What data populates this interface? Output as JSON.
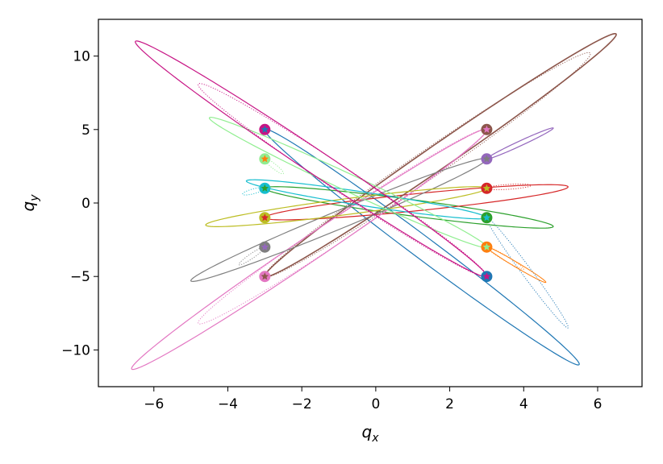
{
  "chart_data": {
    "type": "line",
    "title": "",
    "xlabel": "q",
    "xlabel_sub": "x",
    "ylabel": "q",
    "ylabel_sub": "y",
    "xlim": [
      -7.5,
      7.2
    ],
    "ylim": [
      -12.5,
      12.5
    ],
    "xticks": [
      -6,
      -4,
      -2,
      0,
      2,
      4,
      6
    ],
    "yticks": [
      -10,
      -5,
      0,
      5,
      10
    ],
    "xtick_labels": [
      "−6",
      "−4",
      "−2",
      "0",
      "2",
      "4",
      "6"
    ],
    "ytick_labels": [
      "−10",
      "−5",
      "0",
      "5",
      "10"
    ],
    "grid": false,
    "legend": "none",
    "series": [
      {
        "color": "#1f77b4",
        "start": [
          -3,
          5
        ],
        "orbit_end": [
          5.5,
          -11.0
        ],
        "width": 1.2
      },
      {
        "color": "#1f77b4",
        "start": [
          3,
          -1
        ],
        "orbit_end": [
          5.2,
          -8.5
        ],
        "dotted": true
      },
      {
        "color": "#ff7f0e",
        "start": [
          3,
          -3
        ],
        "orbit_end": [
          4.6,
          -5.4
        ],
        "width": 1.0
      },
      {
        "color": "#ff7f0e",
        "start": [
          3,
          -3
        ],
        "orbit_end": [
          4.0,
          -4.5
        ],
        "dotted": true
      },
      {
        "color": "#2ca02c",
        "start": [
          -3,
          1
        ],
        "orbit_end": [
          4.8,
          -1.6
        ],
        "width": 1.2
      },
      {
        "color": "#d62728",
        "start": [
          -3,
          -1
        ],
        "orbit_end": [
          5.2,
          1.1
        ],
        "width": 1.2
      },
      {
        "color": "#d62728",
        "start": [
          3,
          1
        ],
        "orbit_end": [
          4.2,
          1.2
        ],
        "dotted": true
      },
      {
        "color": "#9467bd",
        "start": [
          3,
          3
        ],
        "orbit_end": [
          4.8,
          5.1
        ],
        "width": 1.2
      },
      {
        "color": "#8c564b",
        "start": [
          -3,
          -5
        ],
        "orbit_end": [
          6.5,
          11.5
        ],
        "width": 1.6
      },
      {
        "color": "#8c564b",
        "start": [
          -3,
          -5
        ],
        "orbit_end": [
          5.8,
          10.2
        ],
        "dotted": true
      },
      {
        "color": "#e377c2",
        "start": [
          3,
          5
        ],
        "orbit_end": [
          -6.6,
          -11.3
        ],
        "width": 1.2
      },
      {
        "color": "#e377c2",
        "start": [
          3,
          5
        ],
        "orbit_end": [
          -4.8,
          -8.2
        ],
        "dotted": true
      },
      {
        "color": "#7f7f7f",
        "start": [
          3,
          3
        ],
        "orbit_end": [
          -5.0,
          -5.3
        ],
        "width": 1.2
      },
      {
        "color": "#7f7f7f",
        "start": [
          -3,
          -3
        ],
        "orbit_end": [
          -3.7,
          -4.2
        ],
        "dotted": true
      },
      {
        "color": "#bcbd22",
        "start": [
          3,
          1
        ],
        "orbit_end": [
          -4.6,
          -1.5
        ],
        "width": 1.2
      },
      {
        "color": "#17becf",
        "start": [
          3,
          -1
        ],
        "orbit_end": [
          -3.5,
          1.5
        ],
        "width": 1.2
      },
      {
        "color": "#17becf",
        "start": [
          -3,
          1
        ],
        "orbit_end": [
          -3.6,
          0.6
        ],
        "dotted": true
      },
      {
        "color": "#90ee90",
        "start": [
          3,
          -3
        ],
        "orbit_end": [
          -4.5,
          5.8
        ],
        "width": 1.2
      },
      {
        "color": "#90ee90",
        "start": [
          -3,
          3
        ],
        "orbit_end": [
          -2.5,
          2.0
        ],
        "dotted": true
      },
      {
        "color": "#c71585",
        "start": [
          3,
          -5
        ],
        "orbit_end": [
          -6.5,
          11.0
        ],
        "width": 1.2
      },
      {
        "color": "#c71585",
        "start": [
          3,
          -5
        ],
        "orbit_end": [
          -4.8,
          8.1
        ],
        "dotted": true
      }
    ],
    "markers": [
      {
        "x": -3,
        "y": 5,
        "ring": "#c71585",
        "fill": "#1f77b4"
      },
      {
        "x": -3,
        "y": 3,
        "ring": "#90ee90",
        "fill": "#ff7f0e"
      },
      {
        "x": -3,
        "y": 1,
        "ring": "#17becf",
        "fill": "#2ca02c"
      },
      {
        "x": -3,
        "y": -1,
        "ring": "#bcbd22",
        "fill": "#d62728"
      },
      {
        "x": -3,
        "y": -3,
        "ring": "#7f7f7f",
        "fill": "#9467bd"
      },
      {
        "x": -3,
        "y": -5,
        "ring": "#e377c2",
        "fill": "#8c564b"
      },
      {
        "x": 3,
        "y": 5,
        "ring": "#8c564b",
        "fill": "#e377c2"
      },
      {
        "x": 3,
        "y": 3,
        "ring": "#9467bd",
        "fill": "#7f7f7f"
      },
      {
        "x": 3,
        "y": 1,
        "ring": "#d62728",
        "fill": "#bcbd22"
      },
      {
        "x": 3,
        "y": -1,
        "ring": "#2ca02c",
        "fill": "#17becf"
      },
      {
        "x": 3,
        "y": -3,
        "ring": "#ff7f0e",
        "fill": "#90ee90"
      },
      {
        "x": 3,
        "y": -5,
        "ring": "#1f77b4",
        "fill": "#c71585"
      }
    ]
  }
}
